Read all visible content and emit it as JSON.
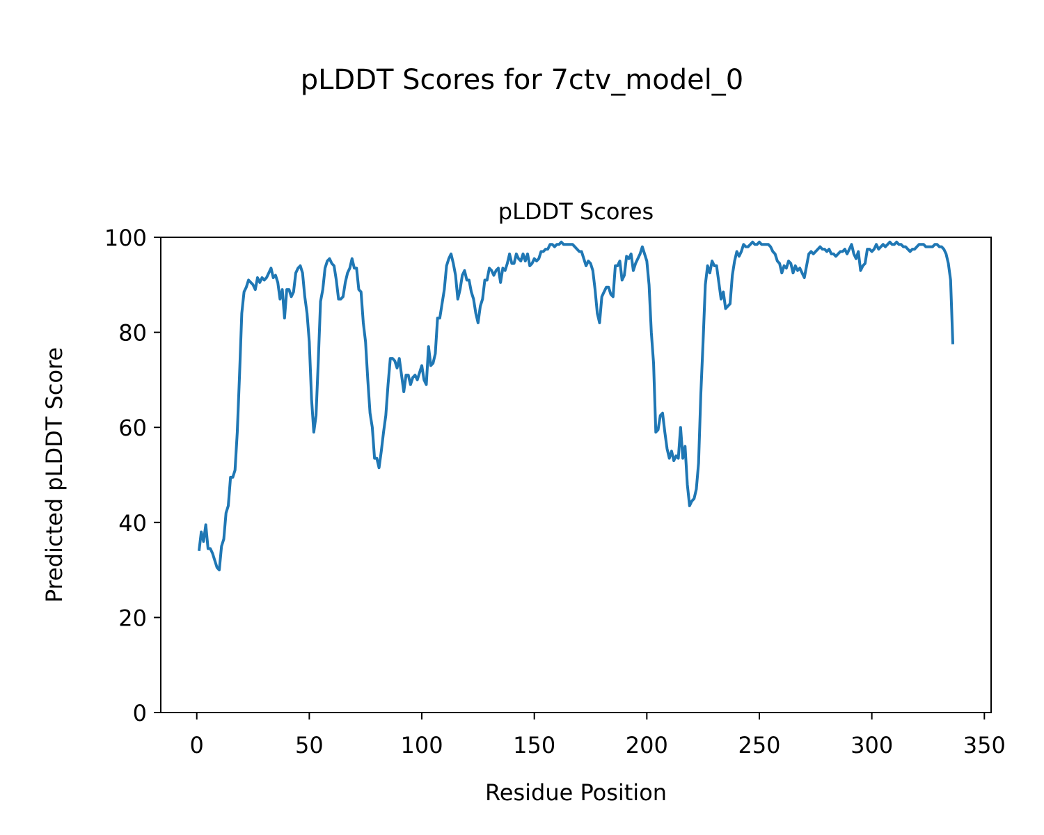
{
  "figure_title": "pLDDT Scores for 7ctv_model_0",
  "chart_data": {
    "type": "line",
    "title": "pLDDT Scores",
    "xlabel": "Residue Position",
    "ylabel": "Predicted pLDDT Score",
    "xlim": [
      -16,
      353
    ],
    "ylim": [
      0,
      100
    ],
    "xticks": [
      0,
      50,
      100,
      150,
      200,
      250,
      300,
      350
    ],
    "yticks": [
      0,
      20,
      40,
      60,
      80,
      100
    ],
    "grid": false,
    "line_color": "#1f77b4",
    "series": [
      {
        "name": "",
        "points": [
          [
            1,
            34
          ],
          [
            2,
            38
          ],
          [
            3,
            36
          ],
          [
            4,
            39.5
          ],
          [
            5,
            34.5
          ],
          [
            6,
            34.5
          ],
          [
            7,
            33.5
          ],
          [
            8,
            32
          ],
          [
            9,
            30.5
          ],
          [
            10,
            30
          ],
          [
            11,
            35
          ],
          [
            12,
            36.5
          ],
          [
            13,
            42
          ],
          [
            14,
            43.5
          ],
          [
            15,
            49.5
          ],
          [
            16,
            49.5
          ],
          [
            17,
            51
          ],
          [
            18,
            59
          ],
          [
            19,
            71
          ],
          [
            20,
            84
          ],
          [
            21,
            88.5
          ],
          [
            22,
            89.5
          ],
          [
            23,
            91
          ],
          [
            24,
            90.5
          ],
          [
            25,
            90
          ],
          [
            26,
            89
          ],
          [
            27,
            91.5
          ],
          [
            28,
            90.5
          ],
          [
            29,
            91.5
          ],
          [
            30,
            91
          ],
          [
            31,
            91.5
          ],
          [
            32,
            92.5
          ],
          [
            33,
            93.5
          ],
          [
            34,
            91.5
          ],
          [
            35,
            92
          ],
          [
            36,
            90.5
          ],
          [
            37,
            87
          ],
          [
            38,
            89
          ],
          [
            39,
            83
          ],
          [
            40,
            89
          ],
          [
            41,
            89
          ],
          [
            42,
            87.5
          ],
          [
            43,
            88.5
          ],
          [
            44,
            92.5
          ],
          [
            45,
            93.5
          ],
          [
            46,
            94
          ],
          [
            47,
            92.5
          ],
          [
            48,
            87.5
          ],
          [
            49,
            84
          ],
          [
            50,
            78
          ],
          [
            51,
            66
          ],
          [
            52,
            59
          ],
          [
            53,
            62.5
          ],
          [
            54,
            74
          ],
          [
            55,
            86.5
          ],
          [
            56,
            89
          ],
          [
            57,
            93.5
          ],
          [
            58,
            95
          ],
          [
            59,
            95.5
          ],
          [
            60,
            94.5
          ],
          [
            61,
            94
          ],
          [
            62,
            91
          ],
          [
            63,
            87
          ],
          [
            64,
            87
          ],
          [
            65,
            87.5
          ],
          [
            66,
            90.5
          ],
          [
            67,
            92.5
          ],
          [
            68,
            93.5
          ],
          [
            69,
            95.5
          ],
          [
            70,
            93.5
          ],
          [
            71,
            93.5
          ],
          [
            72,
            89
          ],
          [
            73,
            88.5
          ],
          [
            74,
            82
          ],
          [
            75,
            78
          ],
          [
            76,
            70
          ],
          [
            77,
            63
          ],
          [
            78,
            60
          ],
          [
            79,
            53.5
          ],
          [
            80,
            53.5
          ],
          [
            81,
            51.5
          ],
          [
            82,
            55
          ],
          [
            83,
            59
          ],
          [
            84,
            62.5
          ],
          [
            85,
            69
          ],
          [
            86,
            74.5
          ],
          [
            87,
            74.5
          ],
          [
            88,
            74
          ],
          [
            89,
            72.5
          ],
          [
            90,
            74.5
          ],
          [
            91,
            71
          ],
          [
            92,
            67.5
          ],
          [
            93,
            71
          ],
          [
            94,
            71
          ],
          [
            95,
            69
          ],
          [
            96,
            70.5
          ],
          [
            97,
            71
          ],
          [
            98,
            70
          ],
          [
            99,
            71.5
          ],
          [
            100,
            73
          ],
          [
            101,
            70
          ],
          [
            102,
            69
          ],
          [
            103,
            77
          ],
          [
            104,
            73
          ],
          [
            105,
            73.5
          ],
          [
            106,
            75.5
          ],
          [
            107,
            83
          ],
          [
            108,
            83
          ],
          [
            109,
            86
          ],
          [
            110,
            89
          ],
          [
            111,
            94
          ],
          [
            112,
            95.5
          ],
          [
            113,
            96.5
          ],
          [
            114,
            94.5
          ],
          [
            115,
            92
          ],
          [
            116,
            87
          ],
          [
            117,
            89
          ],
          [
            118,
            92
          ],
          [
            119,
            93
          ],
          [
            120,
            91
          ],
          [
            121,
            91
          ],
          [
            122,
            88.5
          ],
          [
            123,
            87
          ],
          [
            124,
            84
          ],
          [
            125,
            82
          ],
          [
            126,
            85.5
          ],
          [
            127,
            87
          ],
          [
            128,
            91
          ],
          [
            129,
            91
          ],
          [
            130,
            93.5
          ],
          [
            131,
            93
          ],
          [
            132,
            92
          ],
          [
            133,
            93
          ],
          [
            134,
            93.5
          ],
          [
            135,
            90.5
          ],
          [
            136,
            93.5
          ],
          [
            137,
            93
          ],
          [
            138,
            94.5
          ],
          [
            139,
            96.5
          ],
          [
            140,
            94.5
          ],
          [
            141,
            94.5
          ],
          [
            142,
            96.5
          ],
          [
            143,
            95.5
          ],
          [
            144,
            95
          ],
          [
            145,
            96.5
          ],
          [
            146,
            95
          ],
          [
            147,
            96.5
          ],
          [
            148,
            94
          ],
          [
            149,
            94.5
          ],
          [
            150,
            95.5
          ],
          [
            151,
            95
          ],
          [
            152,
            95.5
          ],
          [
            153,
            97
          ],
          [
            154,
            97
          ],
          [
            155,
            97.5
          ],
          [
            156,
            97.5
          ],
          [
            157,
            98.5
          ],
          [
            158,
            98.5
          ],
          [
            159,
            98
          ],
          [
            160,
            98.5
          ],
          [
            161,
            98.5
          ],
          [
            162,
            99
          ],
          [
            163,
            98.5
          ],
          [
            164,
            98.5
          ],
          [
            165,
            98.5
          ],
          [
            166,
            98.5
          ],
          [
            167,
            98.5
          ],
          [
            168,
            98
          ],
          [
            169,
            97.5
          ],
          [
            170,
            97
          ],
          [
            171,
            97
          ],
          [
            172,
            95.5
          ],
          [
            173,
            94
          ],
          [
            174,
            95
          ],
          [
            175,
            94.5
          ],
          [
            176,
            93
          ],
          [
            177,
            89
          ],
          [
            178,
            84
          ],
          [
            179,
            82
          ],
          [
            180,
            87.5
          ],
          [
            181,
            88.5
          ],
          [
            182,
            89.5
          ],
          [
            183,
            89.5
          ],
          [
            184,
            88
          ],
          [
            185,
            87.5
          ],
          [
            186,
            94
          ],
          [
            187,
            94
          ],
          [
            188,
            95
          ],
          [
            189,
            91
          ],
          [
            190,
            92
          ],
          [
            191,
            96
          ],
          [
            192,
            95.5
          ],
          [
            193,
            96.5
          ],
          [
            194,
            93
          ],
          [
            195,
            94.5
          ],
          [
            196,
            95.5
          ],
          [
            197,
            96.5
          ],
          [
            198,
            98
          ],
          [
            199,
            96.5
          ],
          [
            200,
            95
          ],
          [
            201,
            90
          ],
          [
            202,
            80
          ],
          [
            203,
            73.5
          ],
          [
            204,
            59
          ],
          [
            205,
            59.5
          ],
          [
            206,
            62.5
          ],
          [
            207,
            63
          ],
          [
            208,
            59
          ],
          [
            209,
            55.5
          ],
          [
            210,
            53.5
          ],
          [
            211,
            55
          ],
          [
            212,
            53
          ],
          [
            213,
            54
          ],
          [
            214,
            53.5
          ],
          [
            215,
            60
          ],
          [
            216,
            53.5
          ],
          [
            217,
            56
          ],
          [
            218,
            48
          ],
          [
            219,
            43.5
          ],
          [
            220,
            44.5
          ],
          [
            221,
            45
          ],
          [
            222,
            47
          ],
          [
            223,
            52.5
          ],
          [
            224,
            67
          ],
          [
            225,
            78
          ],
          [
            226,
            90
          ],
          [
            227,
            94
          ],
          [
            228,
            92.5
          ],
          [
            229,
            95
          ],
          [
            230,
            94
          ],
          [
            231,
            94
          ],
          [
            232,
            90.5
          ],
          [
            233,
            87
          ],
          [
            234,
            88.5
          ],
          [
            235,
            85
          ],
          [
            236,
            85.5
          ],
          [
            237,
            86
          ],
          [
            238,
            92
          ],
          [
            239,
            95
          ],
          [
            240,
            97
          ],
          [
            241,
            96
          ],
          [
            242,
            97
          ],
          [
            243,
            98.5
          ],
          [
            244,
            98
          ],
          [
            245,
            98
          ],
          [
            246,
            98.5
          ],
          [
            247,
            99
          ],
          [
            248,
            98.5
          ],
          [
            249,
            98.5
          ],
          [
            250,
            99
          ],
          [
            251,
            98.5
          ],
          [
            252,
            98.5
          ],
          [
            253,
            98.5
          ],
          [
            254,
            98.5
          ],
          [
            255,
            98
          ],
          [
            256,
            97
          ],
          [
            257,
            96.5
          ],
          [
            258,
            95
          ],
          [
            259,
            94.5
          ],
          [
            260,
            92.5
          ],
          [
            261,
            94
          ],
          [
            262,
            93.5
          ],
          [
            263,
            95
          ],
          [
            264,
            94.5
          ],
          [
            265,
            92.5
          ],
          [
            266,
            94
          ],
          [
            267,
            93
          ],
          [
            268,
            93.5
          ],
          [
            269,
            92.5
          ],
          [
            270,
            91.5
          ],
          [
            271,
            94
          ],
          [
            272,
            96.5
          ],
          [
            273,
            97
          ],
          [
            274,
            96.5
          ],
          [
            275,
            97
          ],
          [
            276,
            97.5
          ],
          [
            277,
            98
          ],
          [
            278,
            97.5
          ],
          [
            279,
            97.5
          ],
          [
            280,
            97
          ],
          [
            281,
            97.5
          ],
          [
            282,
            96.5
          ],
          [
            283,
            96.5
          ],
          [
            284,
            96
          ],
          [
            285,
            96.5
          ],
          [
            286,
            97
          ],
          [
            287,
            97
          ],
          [
            288,
            97.5
          ],
          [
            289,
            96.5
          ],
          [
            290,
            97.5
          ],
          [
            291,
            98.5
          ],
          [
            292,
            96.5
          ],
          [
            293,
            95.5
          ],
          [
            294,
            97
          ],
          [
            295,
            93
          ],
          [
            296,
            94
          ],
          [
            297,
            94.5
          ],
          [
            298,
            97.5
          ],
          [
            299,
            97.5
          ],
          [
            300,
            97
          ],
          [
            301,
            97.5
          ],
          [
            302,
            98.5
          ],
          [
            303,
            97.5
          ],
          [
            304,
            98
          ],
          [
            305,
            98.5
          ],
          [
            306,
            98
          ],
          [
            307,
            98.5
          ],
          [
            308,
            99
          ],
          [
            309,
            98.5
          ],
          [
            310,
            98.5
          ],
          [
            311,
            99
          ],
          [
            312,
            98.5
          ],
          [
            313,
            98.5
          ],
          [
            314,
            98
          ],
          [
            315,
            98
          ],
          [
            316,
            97.5
          ],
          [
            317,
            97
          ],
          [
            318,
            97.5
          ],
          [
            319,
            97.5
          ],
          [
            320,
            98
          ],
          [
            321,
            98.5
          ],
          [
            322,
            98.5
          ],
          [
            323,
            98.5
          ],
          [
            324,
            98
          ],
          [
            325,
            98
          ],
          [
            326,
            98
          ],
          [
            327,
            98
          ],
          [
            328,
            98.5
          ],
          [
            329,
            98.5
          ],
          [
            330,
            98
          ],
          [
            331,
            98
          ],
          [
            332,
            97.5
          ],
          [
            333,
            96.5
          ],
          [
            334,
            94.5
          ],
          [
            335,
            91
          ],
          [
            336,
            77.5
          ]
        ]
      }
    ]
  }
}
